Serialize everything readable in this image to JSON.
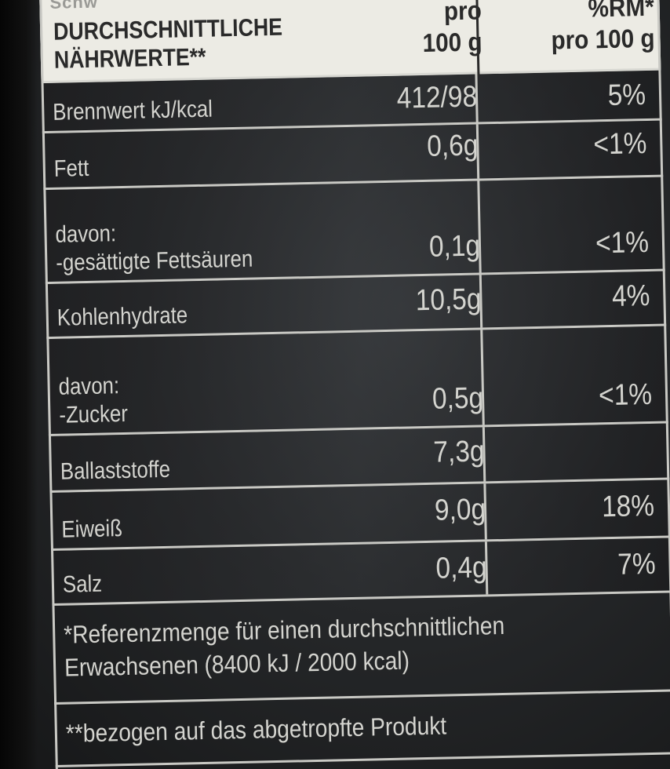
{
  "header": {
    "top_strip": "Schw",
    "col_title_line1": "DURCHSCHNITTLICHE",
    "col_title_line2": "NÄHRWERTE**",
    "col_pro_line1": "pro",
    "col_pro_line2": "100 g",
    "col_rm_line1": "%RM*",
    "col_rm_line2": "pro 100 g"
  },
  "rows": [
    {
      "name_line1": "",
      "name_line2": "Brennwert kJ/kcal",
      "per100": "412/98",
      "rm": "5%"
    },
    {
      "name_line1": "",
      "name_line2": "Fett",
      "per100": "0,6g",
      "rm": "<1%"
    },
    {
      "name_line1": "davon:",
      "name_line2": "-gesättigte Fettsäuren",
      "per100": "0,1g",
      "rm": "<1%"
    },
    {
      "name_line1": "",
      "name_line2": "Kohlenhydrate",
      "per100": "10,5g",
      "rm": "4%"
    },
    {
      "name_line1": "davon:",
      "name_line2": "-Zucker",
      "per100": "0,5g",
      "rm": "<1%"
    },
    {
      "name_line1": "",
      "name_line2": "Ballaststoffe",
      "per100": "7,3g",
      "rm": ""
    },
    {
      "name_line1": "",
      "name_line2": "Eiweiß",
      "per100": "9,0g",
      "rm": "18%"
    },
    {
      "name_line1": "",
      "name_line2": "Salz",
      "per100": "0,4g",
      "rm": "7%"
    }
  ],
  "footnotes": {
    "reference_line1": "*Referenzmenge für einen durchschnittlichen",
    "reference_line2": "Erwachsenen (8400 kJ / 2000 kcal)",
    "drained": "**bezogen auf das abgetropfte Produkt"
  }
}
